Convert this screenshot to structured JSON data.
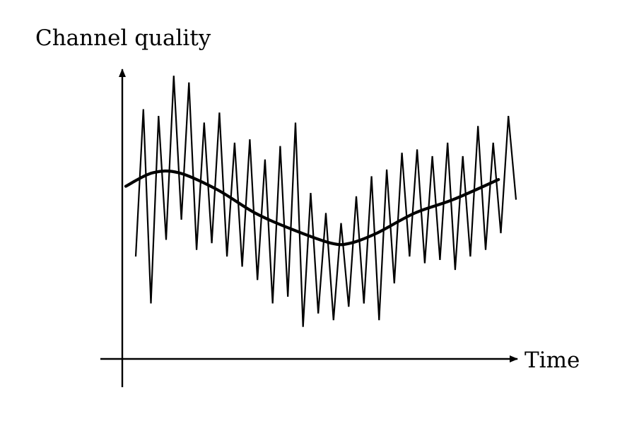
{
  "diagram": {
    "y_axis_label": "Channel quality",
    "x_axis_label": "Time"
  },
  "signals": {
    "fast_fading": {
      "description_visible": false,
      "points": [
        [
          0,
          0.39
        ],
        [
          1,
          0.83
        ],
        [
          2,
          0.25
        ],
        [
          3,
          0.81
        ],
        [
          4,
          0.44
        ],
        [
          5,
          0.93
        ],
        [
          6,
          0.5
        ],
        [
          7,
          0.91
        ],
        [
          8,
          0.41
        ],
        [
          9,
          0.79
        ],
        [
          10,
          0.43
        ],
        [
          11,
          0.82
        ],
        [
          12,
          0.39
        ],
        [
          13,
          0.73
        ],
        [
          14,
          0.36
        ],
        [
          15,
          0.74
        ],
        [
          16,
          0.32
        ],
        [
          17,
          0.68
        ],
        [
          18,
          0.25
        ],
        [
          19,
          0.72
        ],
        [
          20,
          0.27
        ],
        [
          21,
          0.79
        ],
        [
          22,
          0.18
        ],
        [
          23,
          0.58
        ],
        [
          24,
          0.22
        ],
        [
          25,
          0.52
        ],
        [
          26,
          0.2
        ],
        [
          27,
          0.49
        ],
        [
          28,
          0.24
        ],
        [
          29,
          0.57
        ],
        [
          30,
          0.25
        ],
        [
          31,
          0.63
        ],
        [
          32,
          0.2
        ],
        [
          33,
          0.65
        ],
        [
          34,
          0.31
        ],
        [
          35,
          0.7
        ],
        [
          36,
          0.39
        ],
        [
          37,
          0.71
        ],
        [
          38,
          0.37
        ],
        [
          39,
          0.69
        ],
        [
          40,
          0.38
        ],
        [
          41,
          0.73
        ],
        [
          42,
          0.35
        ],
        [
          43,
          0.69
        ],
        [
          44,
          0.39
        ],
        [
          45,
          0.78
        ],
        [
          46,
          0.41
        ],
        [
          47,
          0.73
        ],
        [
          48,
          0.46
        ],
        [
          49,
          0.81
        ],
        [
          50,
          0.56
        ]
      ]
    },
    "slow_trend": {
      "points": [
        [
          0,
          0.6
        ],
        [
          3.5,
          0.64
        ],
        [
          7,
          0.64
        ],
        [
          12,
          0.59
        ],
        [
          17,
          0.52
        ],
        [
          22,
          0.47
        ],
        [
          27,
          0.43
        ],
        [
          29.5,
          0.43
        ],
        [
          33,
          0.46
        ],
        [
          38,
          0.52
        ],
        [
          43,
          0.56
        ],
        [
          49,
          0.62
        ]
      ]
    }
  }
}
